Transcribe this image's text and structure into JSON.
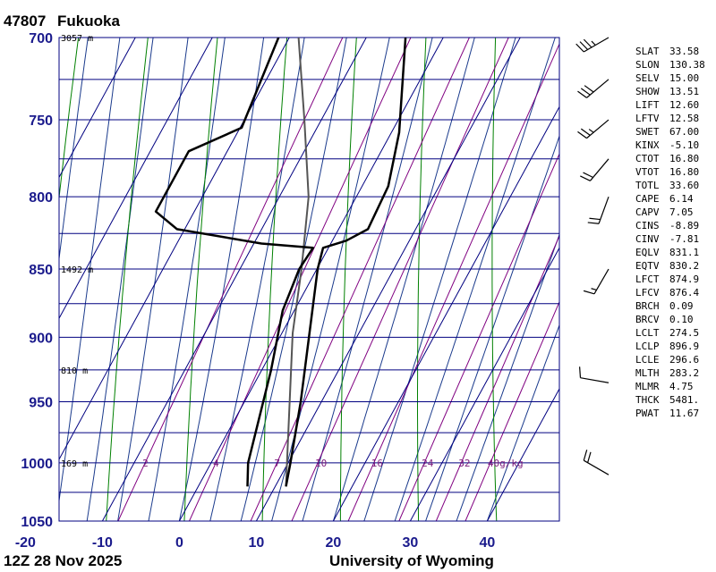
{
  "header": {
    "station_id": "47807",
    "station_name": "Fukuoka"
  },
  "footer": {
    "time": "12Z 28 Nov 2025",
    "source": "University of Wyoming"
  },
  "colors": {
    "isobar": "#000080",
    "isotherm": "#000080",
    "dry_adiabat": "#008000",
    "moist_adiabat": "#1a3a8c",
    "mixing_ratio": "#800080",
    "profile": "#000000",
    "parcel": "#555555"
  },
  "chart_data": {
    "type": "skew-t",
    "xlabel": "",
    "ylabel": "",
    "xlim": [
      -20,
      45
    ],
    "ylim": [
      1050,
      700
    ],
    "pressure_ticks": [
      700,
      750,
      800,
      850,
      900,
      950,
      1000,
      1050
    ],
    "temperature_ticks": [
      -20,
      -10,
      0,
      10,
      20,
      30,
      40
    ],
    "height_labels": [
      {
        "p": 700,
        "label": "3057 m"
      },
      {
        "p": 850,
        "label": "1492 m"
      },
      {
        "p": 925,
        "label": "810 m"
      },
      {
        "p": 1000,
        "label": "169 m"
      }
    ],
    "mixing_ratio_labels": [
      "2",
      "4",
      "7",
      "10",
      "16",
      "24",
      "32",
      "40g/kg"
    ],
    "mixing_ratio_values": [
      2,
      4,
      7,
      10,
      16,
      24,
      32,
      40
    ],
    "temperature_profile": [
      {
        "p": 1020,
        "t": 11.4
      },
      {
        "p": 1000,
        "t": 10.3
      },
      {
        "p": 950,
        "t": 7.3
      },
      {
        "p": 900,
        "t": 3.8
      },
      {
        "p": 850,
        "t": 0.1
      },
      {
        "p": 835,
        "t": -0.7
      },
      {
        "p": 830,
        "t": 1.8
      },
      {
        "p": 822,
        "t": 3.8
      },
      {
        "p": 793,
        "t": 3.4
      },
      {
        "p": 758,
        "t": 1.0
      },
      {
        "p": 700,
        "t": -4.9
      }
    ],
    "dewpoint_profile": [
      {
        "p": 1020,
        "t": 6.4
      },
      {
        "p": 1000,
        "t": 4.8
      },
      {
        "p": 925,
        "t": 1.2
      },
      {
        "p": 880,
        "t": -1.5
      },
      {
        "p": 850,
        "t": -2.3
      },
      {
        "p": 835,
        "t": -2.0
      },
      {
        "p": 832,
        "t": -9.0
      },
      {
        "p": 822,
        "t": -21.0
      },
      {
        "p": 810,
        "t": -25.0
      },
      {
        "p": 770,
        "t": -25.0
      },
      {
        "p": 755,
        "t": -19.8
      },
      {
        "p": 700,
        "t": -21.4
      }
    ],
    "parcel_path": [
      {
        "p": 1020,
        "t": 11.4
      },
      {
        "p": 897,
        "t": 1.4
      },
      {
        "p": 850,
        "t": -2.0
      },
      {
        "p": 800,
        "t": -6.2
      },
      {
        "p": 750,
        "t": -12.2
      },
      {
        "p": 700,
        "t": -18.8
      }
    ],
    "wind_barbs": [
      {
        "p": 1010,
        "dir": 300,
        "kt": 20
      },
      {
        "p": 935,
        "dir": 280,
        "kt": 10
      },
      {
        "p": 850,
        "dir": 210,
        "kt": 15
      },
      {
        "p": 800,
        "dir": 200,
        "kt": 20
      },
      {
        "p": 775,
        "dir": 220,
        "kt": 20
      },
      {
        "p": 750,
        "dir": 230,
        "kt": 25
      },
      {
        "p": 725,
        "dir": 230,
        "kt": 30
      },
      {
        "p": 700,
        "dir": 240,
        "kt": 35
      }
    ]
  },
  "indices": [
    {
      "k": "SLAT",
      "v": "33.58"
    },
    {
      "k": "SLON",
      "v": "130.38"
    },
    {
      "k": "SELV",
      "v": "15.00"
    },
    {
      "k": "SHOW",
      "v": "13.51"
    },
    {
      "k": "LIFT",
      "v": "12.60"
    },
    {
      "k": "LFTV",
      "v": "12.58"
    },
    {
      "k": "SWET",
      "v": "67.00"
    },
    {
      "k": "KINX",
      "v": "-5.10"
    },
    {
      "k": "CTOT",
      "v": "16.80"
    },
    {
      "k": "VTOT",
      "v": "16.80"
    },
    {
      "k": "TOTL",
      "v": "33.60"
    },
    {
      "k": "CAPE",
      "v": "6.14"
    },
    {
      "k": "CAPV",
      "v": "7.05"
    },
    {
      "k": "CINS",
      "v": "-8.89"
    },
    {
      "k": "CINV",
      "v": "-7.81"
    },
    {
      "k": "EQLV",
      "v": "831.1"
    },
    {
      "k": "EQTV",
      "v": "830.2"
    },
    {
      "k": "LFCT",
      "v": "874.9"
    },
    {
      "k": "LFCV",
      "v": "876.4"
    },
    {
      "k": "BRCH",
      "v": "0.09"
    },
    {
      "k": "BRCV",
      "v": "0.10"
    },
    {
      "k": "LCLT",
      "v": "274.5"
    },
    {
      "k": "LCLP",
      "v": "896.9"
    },
    {
      "k": "LCLE",
      "v": "296.6"
    },
    {
      "k": "MLTH",
      "v": "283.2"
    },
    {
      "k": "MLMR",
      "v": "4.75"
    },
    {
      "k": "THCK",
      "v": "5481."
    },
    {
      "k": "PWAT",
      "v": "11.67"
    }
  ]
}
